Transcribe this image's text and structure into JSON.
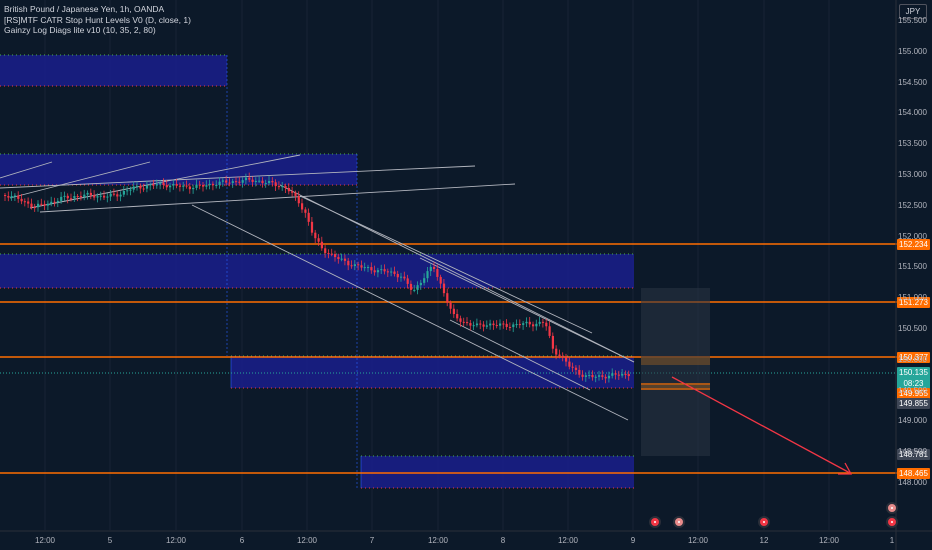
{
  "legend": {
    "symbol_line": "British Pound / Japanese Yen, 1h, OANDA",
    "indicator_1": "[RS]MTF CATR Stop Hunt Levels V0 (D, close, 1)",
    "indicator_2": "Gainzy Log Diags lite v10 (10, 35, 2, 80)"
  },
  "currency": "JPY",
  "price_axis": {
    "ticks": [
      "155.500",
      "155.000",
      "154.500",
      "154.000",
      "153.500",
      "153.000",
      "152.500",
      "152.000",
      "151.500",
      "151.000",
      "150.500",
      "150.000",
      "149.500",
      "149.000",
      "148.500",
      "148.000"
    ]
  },
  "price_badges": {
    "level_1": "152.234",
    "level_2": "151.273",
    "level_3": "150.377",
    "current_price": "150.135",
    "countdown": "08:23",
    "level_4": "149.955",
    "level_5": "149.855",
    "level_6": "148.781",
    "level_7": "148.465"
  },
  "time_axis": {
    "ticks": [
      "12:00",
      "5",
      "12:00",
      "6",
      "12:00",
      "7",
      "12:00",
      "8",
      "12:00",
      "9",
      "12:00",
      "12",
      "12:00",
      "1"
    ]
  },
  "colors": {
    "background": "#0c1929",
    "up_candle": "#26a69a",
    "down_candle": "#f23645",
    "orange_level": "#ff6d00",
    "zone_fill": "#1a1f8c",
    "trend_line": "#b2b5be",
    "arrow": "#f23645"
  },
  "icons": {
    "events": "calendar-event-icon"
  }
}
